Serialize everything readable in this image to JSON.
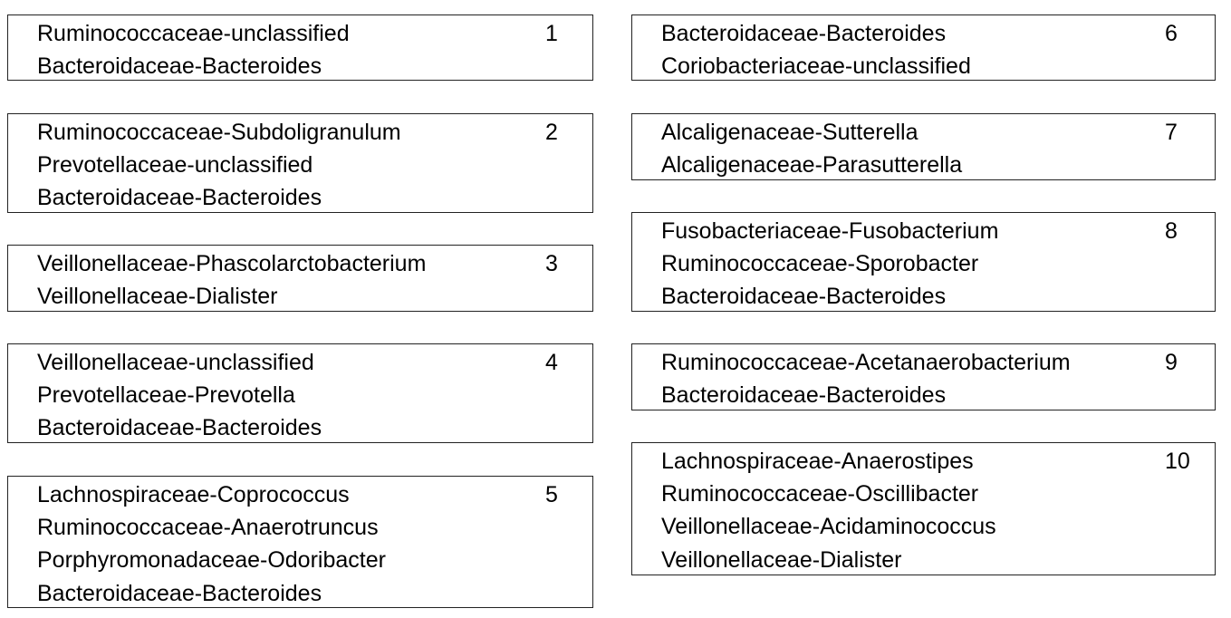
{
  "clusters": [
    {
      "number": "1",
      "taxa": [
        "Ruminococcaceae-unclassified",
        "Bacteroidaceae-Bacteroides"
      ]
    },
    {
      "number": "2",
      "taxa": [
        "Ruminococcaceae-Subdoligranulum",
        "Prevotellaceae-unclassified",
        "Bacteroidaceae-Bacteroides"
      ]
    },
    {
      "number": "3",
      "taxa": [
        "Veillonellaceae-Phascolarctobacterium",
        "Veillonellaceae-Dialister"
      ]
    },
    {
      "number": "4",
      "taxa": [
        "Veillonellaceae-unclassified",
        "Prevotellaceae-Prevotella",
        "Bacteroidaceae-Bacteroides"
      ]
    },
    {
      "number": "5",
      "taxa": [
        "Lachnospiraceae-Coprococcus",
        "Ruminococcaceae-Anaerotruncus",
        "Porphyromonadaceae-Odoribacter",
        "Bacteroidaceae-Bacteroides"
      ]
    },
    {
      "number": "6",
      "taxa": [
        "Bacteroidaceae-Bacteroides",
        "Coriobacteriaceae-unclassified"
      ]
    },
    {
      "number": "7",
      "taxa": [
        "Alcaligenaceae-Sutterella",
        "Alcaligenaceae-Parasutterella"
      ]
    },
    {
      "number": "8",
      "taxa": [
        "Fusobacteriaceae-Fusobacterium",
        "Ruminococcaceae-Sporobacter",
        "Bacteroidaceae-Bacteroides"
      ]
    },
    {
      "number": "9",
      "taxa": [
        "Ruminococcaceae-Acetanaerobacterium",
        "Bacteroidaceae-Bacteroides"
      ]
    },
    {
      "number": "10",
      "taxa": [
        "Lachnospiraceae-Anaerostipes",
        "Ruminococcaceae-Oscillibacter",
        "Veillonellaceae-Acidaminococcus",
        "Veillonellaceae-Dialister"
      ]
    }
  ]
}
